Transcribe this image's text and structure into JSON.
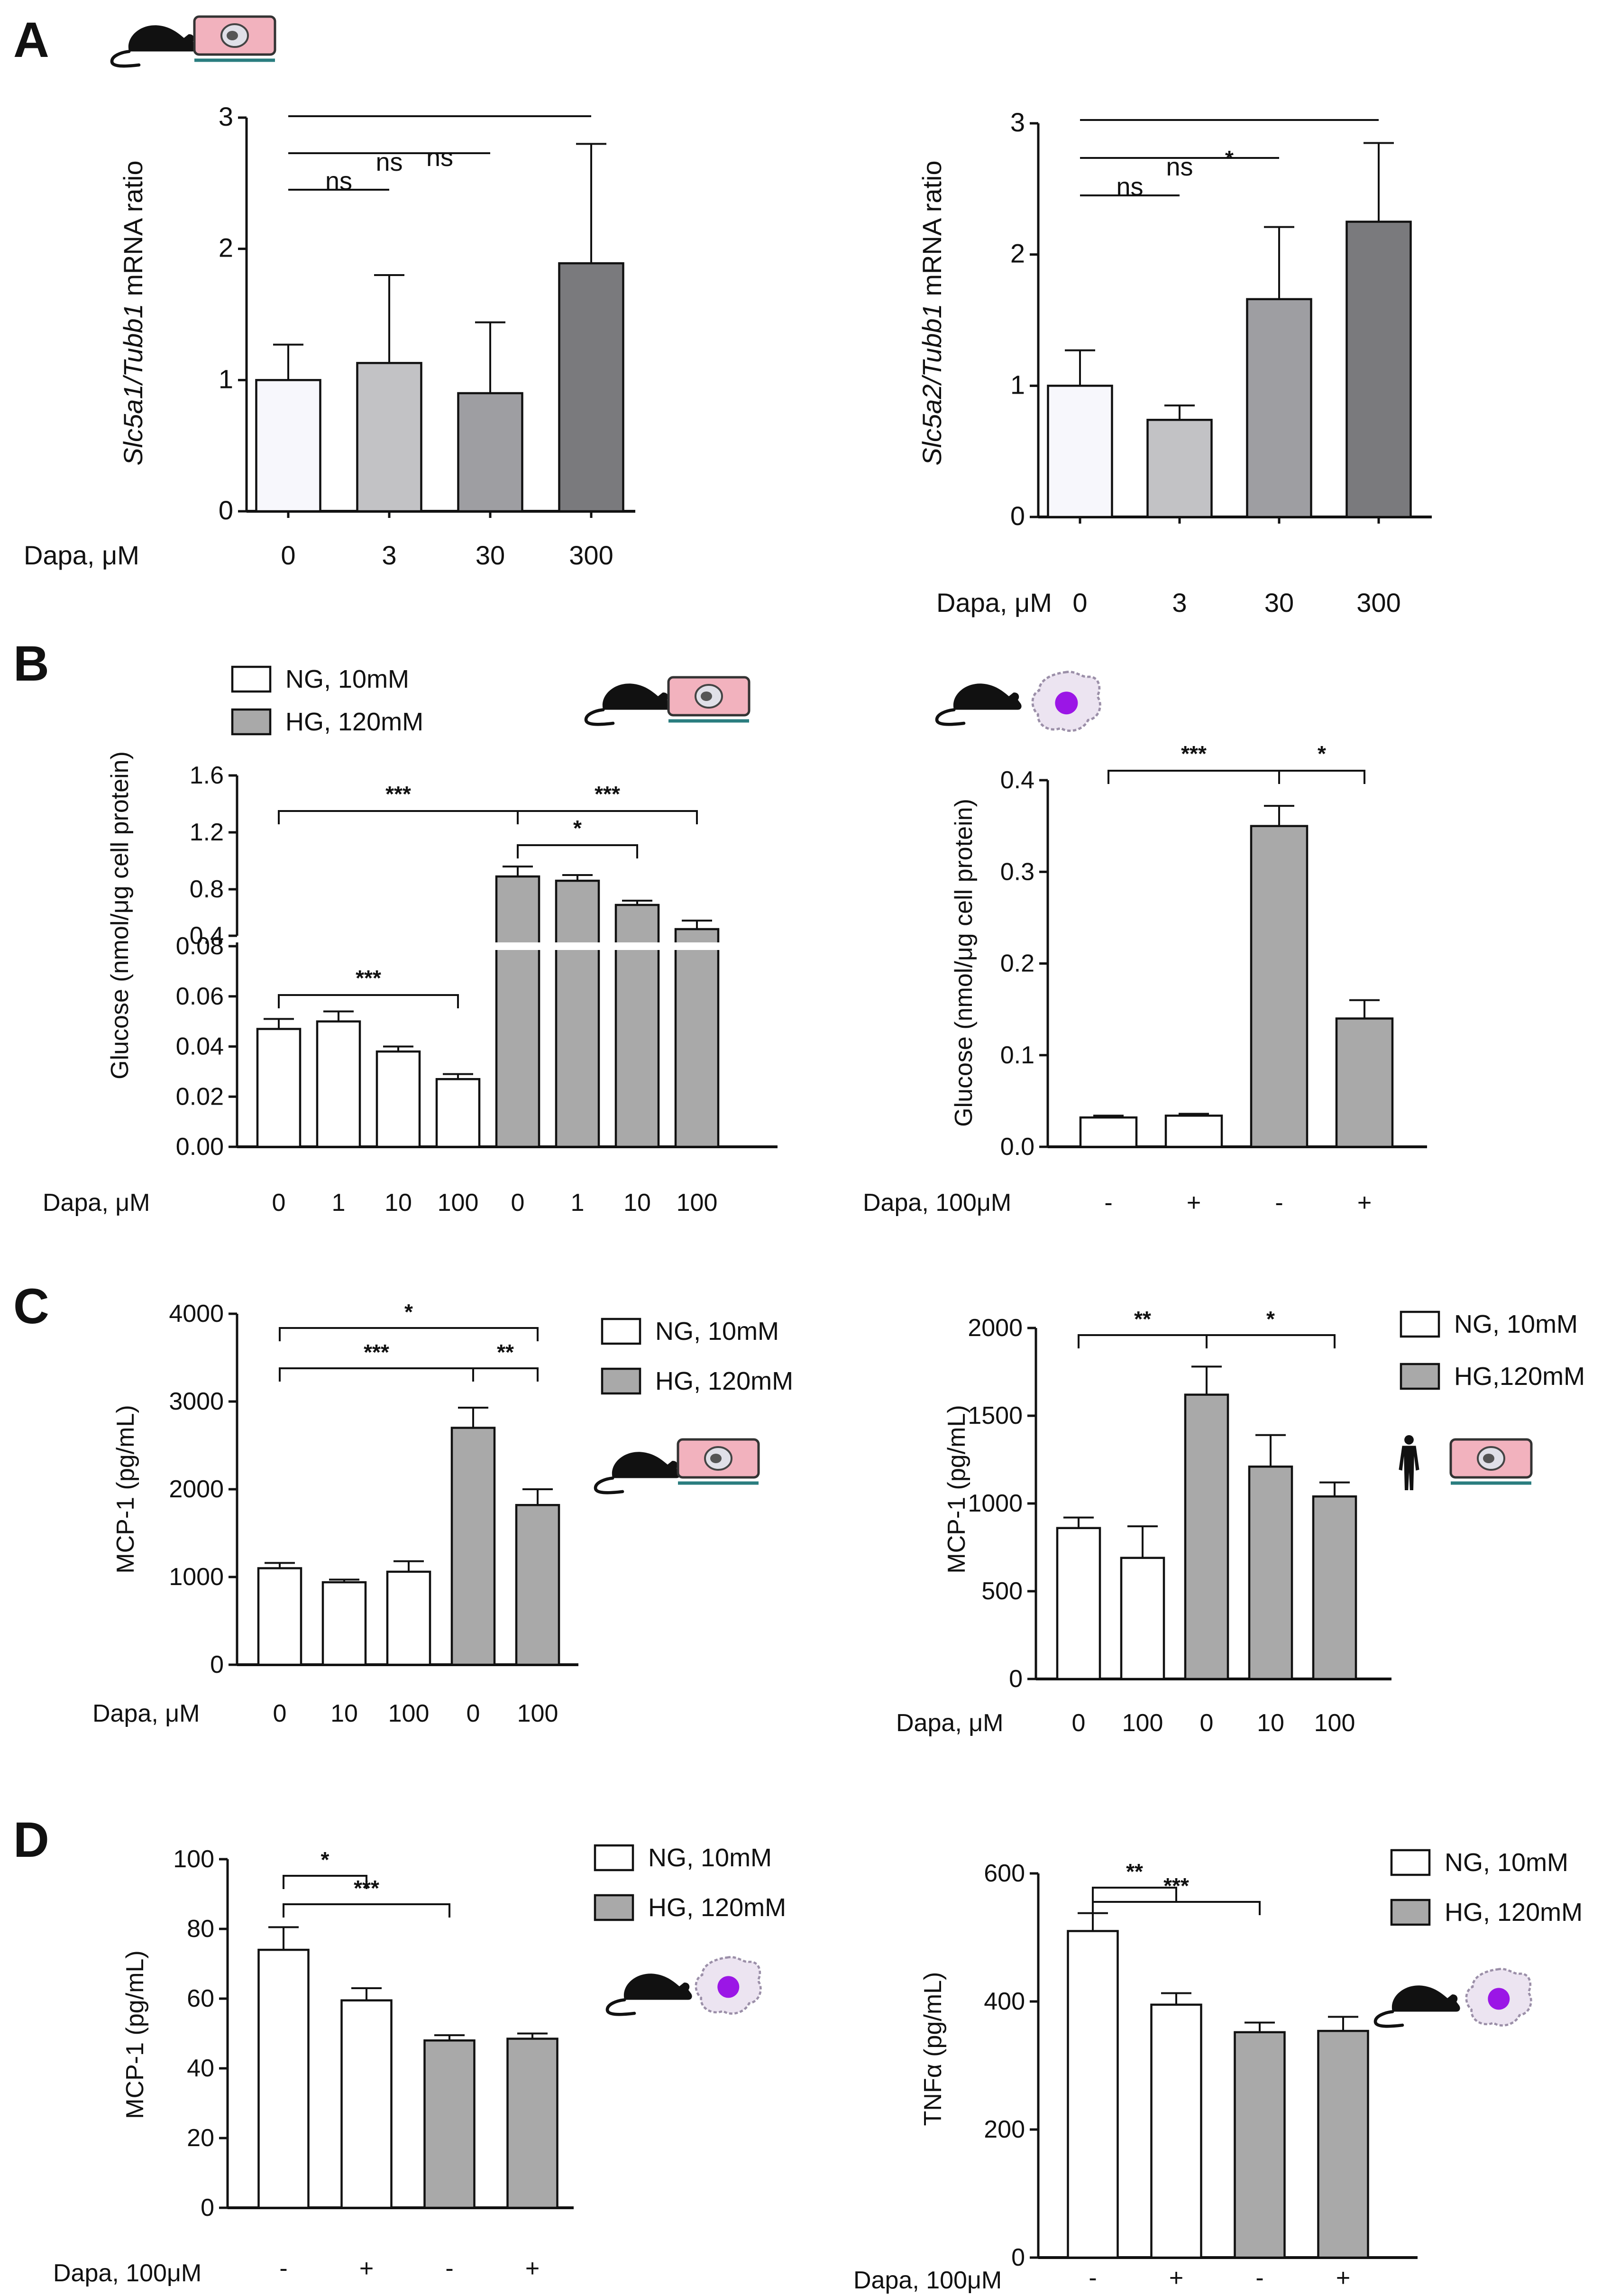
{
  "chart_data": [
    {
      "id": "A1",
      "panel": "A",
      "type": "bar",
      "ylabel_italic": "Slc5a1/Tubb1",
      "ylabel_rest": " mRNA ratio",
      "yaxis": {
        "min": 0,
        "max": 3,
        "ticks": [
          "0",
          "1",
          "2",
          "3"
        ]
      },
      "xlabel": "Dapa, μM",
      "categories": [
        "0",
        "3",
        "30",
        "300"
      ],
      "values": [
        1.0,
        1.13,
        0.9,
        1.89
      ],
      "errors": [
        0.27,
        0.67,
        0.54,
        0.91
      ],
      "significance": [
        {
          "from": 0,
          "to": 1,
          "label": "ns"
        },
        {
          "from": 0,
          "to": 2,
          "label": "ns"
        },
        {
          "from": 0,
          "to": 3,
          "label": "ns"
        }
      ]
    },
    {
      "id": "A2",
      "panel": "A",
      "type": "bar",
      "ylabel_italic": "Slc5a2/Tubb1",
      "ylabel_rest": " mRNA ratio",
      "yaxis": {
        "min": 0,
        "max": 3,
        "ticks": [
          "0",
          "1",
          "2",
          "3"
        ]
      },
      "xlabel": "Dapa, μM",
      "categories": [
        "0",
        "3",
        "30",
        "300"
      ],
      "values": [
        1.0,
        0.74,
        1.66,
        2.25
      ],
      "errors": [
        0.27,
        0.11,
        0.55,
        0.6
      ],
      "significance": [
        {
          "from": 0,
          "to": 1,
          "label": "ns"
        },
        {
          "from": 0,
          "to": 2,
          "label": "ns"
        },
        {
          "from": 0,
          "to": 3,
          "label": "*"
        }
      ]
    },
    {
      "id": "B1",
      "panel": "B",
      "type": "bar",
      "ylabel": "Glucose (nmol/μg cell protein)",
      "yaxis_lower": {
        "min": 0,
        "max": 0.08,
        "ticks": [
          "0.00",
          "0.02",
          "0.04",
          "0.06",
          "0.08"
        ]
      },
      "yaxis_upper": {
        "min": 0.4,
        "max": 1.6,
        "ticks": [
          "0.4",
          "0.8",
          "1.2",
          "1.6"
        ]
      },
      "xlabel": "Dapa, μM",
      "categories": [
        "0",
        "1",
        "10",
        "100",
        "0",
        "1",
        "10",
        "100"
      ],
      "groups": [
        "NG",
        "NG",
        "NG",
        "NG",
        "HG",
        "HG",
        "HG",
        "HG"
      ],
      "values": [
        0.047,
        0.05,
        0.038,
        0.027,
        0.89,
        0.86,
        0.69,
        0.52
      ],
      "errors": [
        0.004,
        0.004,
        0.002,
        0.002,
        0.07,
        0.04,
        0.03,
        0.06
      ],
      "legend": [
        "NG, 10mM",
        "HG, 120mM"
      ],
      "significance": [
        {
          "from": 0,
          "to": 4,
          "label": "***"
        },
        {
          "from": 4,
          "to": 6,
          "label": "*"
        },
        {
          "from": 4,
          "to": 7,
          "label": "***"
        },
        {
          "from": 0,
          "to": 3,
          "label": "***"
        }
      ]
    },
    {
      "id": "B2",
      "panel": "B",
      "type": "bar",
      "ylabel": "Glucose (nmol/μg cell protein)",
      "yaxis": {
        "min": 0,
        "max": 0.4,
        "ticks": [
          "0.0",
          "0.1",
          "0.2",
          "0.3",
          "0.4"
        ]
      },
      "xlabel": "Dapa, 100μM",
      "categories": [
        "-",
        "+",
        "-",
        "+"
      ],
      "groups": [
        "NG",
        "NG",
        "HG",
        "HG"
      ],
      "values": [
        0.032,
        0.034,
        0.35,
        0.14
      ],
      "errors": [
        0.002,
        0.002,
        0.022,
        0.02
      ],
      "significance": [
        {
          "from": 0,
          "to": 2,
          "label": "***"
        },
        {
          "from": 2,
          "to": 3,
          "label": "*"
        }
      ]
    },
    {
      "id": "C1",
      "panel": "C",
      "type": "bar",
      "ylabel": "MCP-1 (pg/mL)",
      "yaxis": {
        "min": 0,
        "max": 4000,
        "ticks": [
          "0",
          "1000",
          "2000",
          "3000",
          "4000"
        ]
      },
      "xlabel": "Dapa, μM",
      "categories": [
        "0",
        "10",
        "100",
        "0",
        "100"
      ],
      "groups": [
        "NG",
        "NG",
        "NG",
        "HG",
        "HG"
      ],
      "values": [
        1100,
        940,
        1060,
        2700,
        1820
      ],
      "errors": [
        60,
        30,
        120,
        230,
        180
      ],
      "legend": [
        "NG, 10mM",
        "HG, 120mM"
      ],
      "significance": [
        {
          "from": 0,
          "to": 4,
          "label": "*"
        },
        {
          "from": 0,
          "to": 3,
          "label": "***"
        },
        {
          "from": 3,
          "to": 4,
          "label": "**"
        }
      ]
    },
    {
      "id": "C2",
      "panel": "C",
      "type": "bar",
      "ylabel": "MCP-1 (pg/mL)",
      "yaxis": {
        "min": 0,
        "max": 2000,
        "ticks": [
          "0",
          "500",
          "1000",
          "1500",
          "2000"
        ]
      },
      "xlabel": "Dapa, μM",
      "categories": [
        "0",
        "100",
        "0",
        "10",
        "100"
      ],
      "groups": [
        "NG",
        "NG",
        "HG",
        "HG",
        "HG"
      ],
      "values": [
        860,
        690,
        1620,
        1210,
        1040
      ],
      "errors": [
        60,
        180,
        160,
        180,
        80
      ],
      "legend": [
        "NG, 10mM",
        "HG,120mM"
      ],
      "significance": [
        {
          "from": 0,
          "to": 2,
          "label": "**"
        },
        {
          "from": 2,
          "to": 4,
          "label": "*"
        }
      ]
    },
    {
      "id": "D1",
      "panel": "D",
      "type": "bar",
      "ylabel": "MCP-1 (pg/mL)",
      "yaxis": {
        "min": 0,
        "max": 100,
        "ticks": [
          "0",
          "20",
          "40",
          "60",
          "80",
          "100"
        ]
      },
      "xlabel": "Dapa, 100μM",
      "categories": [
        "-",
        "+",
        "-",
        "+"
      ],
      "groups": [
        "NG",
        "NG",
        "HG",
        "HG"
      ],
      "values": [
        74,
        59.5,
        48,
        48.5
      ],
      "errors": [
        6.5,
        3.5,
        1.5,
        1.5
      ],
      "legend": [
        "NG, 10mM",
        "HG, 120mM"
      ],
      "significance": [
        {
          "from": 0,
          "to": 1,
          "label": "*"
        },
        {
          "from": 0,
          "to": 2,
          "label": "***"
        }
      ]
    },
    {
      "id": "D2",
      "panel": "D",
      "type": "bar",
      "ylabel": "TNFα (pg/mL)",
      "yaxis": {
        "min": 0,
        "max": 600,
        "ticks": [
          "0",
          "200",
          "400",
          "600"
        ]
      },
      "xlabel": "Dapa, 100μM",
      "categories": [
        "-",
        "+",
        "-",
        "+"
      ],
      "groups": [
        "NG",
        "NG",
        "HG",
        "HG"
      ],
      "values": [
        510,
        395,
        352,
        354
      ],
      "errors": [
        28,
        18,
        15,
        22
      ],
      "legend": [
        "NG, 10mM",
        "HG, 120mM"
      ],
      "significance": [
        {
          "from": 0,
          "to": 1,
          "label": "**"
        },
        {
          "from": 0,
          "to": 2,
          "label": "***"
        }
      ]
    }
  ],
  "panel_letters": [
    "A",
    "B",
    "C",
    "D"
  ],
  "colors": {
    "ng_fill": "#ffffff",
    "hg_fill": "#a9a9a9",
    "a_fills": [
      "#f7f7fc",
      "#c2c2c5",
      "#9e9ea2",
      "#7a7a7d"
    ],
    "axis": "#111111",
    "dish_fill": "#f2b2be",
    "dish_line": "#2a7d7f",
    "macrophage_fill": "#ece4f1",
    "nucleus": "#9b16e6"
  },
  "icons": [
    "mouse-icon",
    "culture-dish-icon",
    "macrophage-icon",
    "human-icon"
  ]
}
